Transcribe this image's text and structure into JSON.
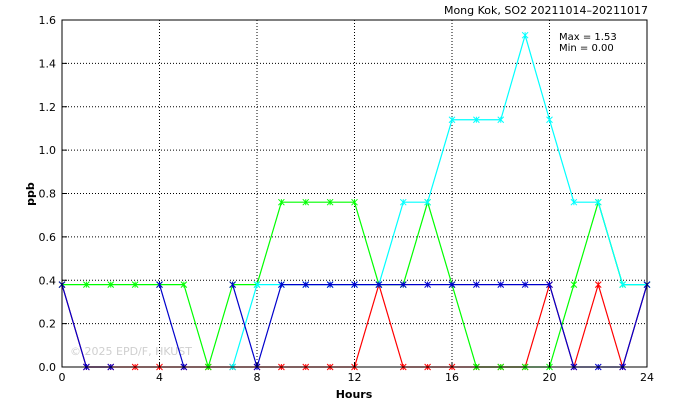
{
  "chart_data": {
    "type": "line",
    "title": "Mong Kok, SO2 20211014–20211017",
    "xlabel": "Hours",
    "ylabel": "ppb",
    "xlim": [
      0,
      24
    ],
    "ylim": [
      0,
      1.6
    ],
    "x_ticks": [
      "0",
      "4",
      "8",
      "12",
      "16",
      "20",
      "24"
    ],
    "y_ticks": [
      "0.0",
      "0.2",
      "0.4",
      "0.6",
      "0.8",
      "1.0",
      "1.2",
      "1.4",
      "1.6"
    ],
    "grid": true,
    "stats": {
      "max": "Max = 1.53",
      "min": "Min = 0.00"
    },
    "watermark": "© 2025 EPD/F, HKUST",
    "x": [
      0,
      1,
      2,
      3,
      4,
      5,
      6,
      7,
      8,
      9,
      10,
      11,
      12,
      13,
      14,
      15,
      16,
      17,
      18,
      19,
      20,
      21,
      22,
      23,
      24
    ],
    "series": [
      {
        "color": "#ff0000",
        "values": [
          0.38,
          0,
          0,
          0,
          0,
          0,
          0,
          0,
          0,
          0,
          0,
          0,
          0,
          0.38,
          0,
          0,
          0,
          0,
          0,
          0,
          0.38,
          0,
          0.38,
          0,
          0.38
        ]
      },
      {
        "color": "#00ff00",
        "values": [
          0.38,
          0.38,
          0.38,
          0.38,
          0.38,
          0.38,
          0,
          0.38,
          0.38,
          0.76,
          0.76,
          0.76,
          0.76,
          0.38,
          0.38,
          0.76,
          0.38,
          0,
          0,
          0,
          0,
          0.38,
          0.76,
          0.38,
          0.38
        ]
      },
      {
        "color": "#00ffff",
        "values": [
          null,
          null,
          null,
          null,
          null,
          null,
          null,
          0,
          0.38,
          0.38,
          0.38,
          0.38,
          0.38,
          0.38,
          0.76,
          0.76,
          1.14,
          1.14,
          1.14,
          1.53,
          1.14,
          0.76,
          0.76,
          0.38,
          0.38
        ]
      },
      {
        "color": "#0000cc",
        "values": [
          0.38,
          0,
          0,
          null,
          0.38,
          0,
          null,
          0.38,
          0,
          0.38,
          0.38,
          0.38,
          0.38,
          0.38,
          0.38,
          0.38,
          0.38,
          0.38,
          0.38,
          0.38,
          0.38,
          0,
          0,
          0,
          0.38
        ]
      }
    ]
  }
}
